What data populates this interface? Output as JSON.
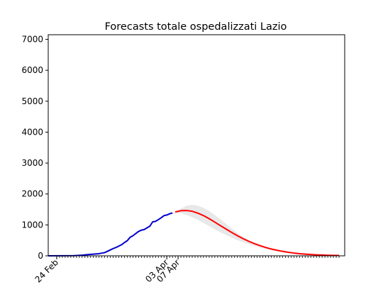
{
  "chart_data": {
    "type": "line",
    "title": "Forecasts totale ospedalizzati Lazio",
    "xlabel": "",
    "ylabel": "",
    "x_start": "2020-02-21",
    "x_end": "2020-06-05",
    "xtick_labels": [
      {
        "label": "24 Feb",
        "date": "2020-02-24"
      },
      {
        "label": "03 Apr",
        "date": "2020-04-03"
      },
      {
        "label": "07 Apr",
        "date": "2020-04-07"
      }
    ],
    "ylim": [
      0,
      7150
    ],
    "yticks": [
      0,
      1000,
      2000,
      3000,
      4000,
      5000,
      6000,
      7000
    ],
    "grid": false,
    "series": [
      {
        "role": "observed",
        "color": "#0000cc",
        "points": [
          [
            "2020-02-21",
            0
          ],
          [
            "2020-02-26",
            2
          ],
          [
            "2020-03-01",
            5
          ],
          [
            "2020-03-04",
            20
          ],
          [
            "2020-03-06",
            40
          ],
          [
            "2020-03-08",
            55
          ],
          [
            "2020-03-10",
            70
          ],
          [
            "2020-03-12",
            105
          ],
          [
            "2020-03-14",
            190
          ],
          [
            "2020-03-15",
            235
          ],
          [
            "2020-03-16",
            270
          ],
          [
            "2020-03-18",
            360
          ],
          [
            "2020-03-19",
            430
          ],
          [
            "2020-03-20",
            490
          ],
          [
            "2020-03-21",
            600
          ],
          [
            "2020-03-22",
            650
          ],
          [
            "2020-03-23",
            720
          ],
          [
            "2020-03-24",
            790
          ],
          [
            "2020-03-25",
            830
          ],
          [
            "2020-03-26",
            850
          ],
          [
            "2020-03-27",
            905
          ],
          [
            "2020-03-28",
            960
          ],
          [
            "2020-03-29",
            1100
          ],
          [
            "2020-03-30",
            1115
          ],
          [
            "2020-03-31",
            1170
          ],
          [
            "2020-04-01",
            1230
          ],
          [
            "2020-04-02",
            1300
          ],
          [
            "2020-04-03",
            1320
          ],
          [
            "2020-04-04",
            1360
          ],
          [
            "2020-04-05",
            1385
          ]
        ]
      },
      {
        "role": "forecast",
        "color": "#ff0000",
        "points": [
          [
            "2020-04-06",
            1420
          ],
          [
            "2020-04-08",
            1460
          ],
          [
            "2020-04-10",
            1465
          ],
          [
            "2020-04-12",
            1440
          ],
          [
            "2020-04-14",
            1380
          ],
          [
            "2020-04-16",
            1300
          ],
          [
            "2020-04-18",
            1200
          ],
          [
            "2020-04-20",
            1090
          ],
          [
            "2020-04-22",
            975
          ],
          [
            "2020-04-24",
            865
          ],
          [
            "2020-04-26",
            755
          ],
          [
            "2020-04-28",
            650
          ],
          [
            "2020-04-30",
            555
          ],
          [
            "2020-05-02",
            470
          ],
          [
            "2020-05-04",
            395
          ],
          [
            "2020-05-06",
            330
          ],
          [
            "2020-05-08",
            270
          ],
          [
            "2020-05-10",
            220
          ],
          [
            "2020-05-12",
            180
          ],
          [
            "2020-05-14",
            145
          ],
          [
            "2020-05-16",
            115
          ],
          [
            "2020-05-18",
            90
          ],
          [
            "2020-05-20",
            70
          ],
          [
            "2020-05-22",
            55
          ],
          [
            "2020-05-24",
            42
          ],
          [
            "2020-05-26",
            32
          ],
          [
            "2020-05-28",
            25
          ],
          [
            "2020-05-30",
            18
          ],
          [
            "2020-06-01",
            13
          ],
          [
            "2020-06-03",
            10
          ]
        ]
      }
    ],
    "band": {
      "role": "forecast-uncertainty",
      "color": "#e8e8e8",
      "upper": [
        [
          "2020-04-05",
          1390
        ],
        [
          "2020-04-08",
          1520
        ],
        [
          "2020-04-10",
          1620
        ],
        [
          "2020-04-12",
          1650
        ],
        [
          "2020-04-14",
          1620
        ],
        [
          "2020-04-16",
          1550
        ],
        [
          "2020-04-18",
          1450
        ],
        [
          "2020-04-20",
          1320
        ],
        [
          "2020-04-22",
          1180
        ],
        [
          "2020-04-24",
          1030
        ],
        [
          "2020-04-26",
          880
        ],
        [
          "2020-04-28",
          740
        ],
        [
          "2020-04-30",
          620
        ],
        [
          "2020-05-02",
          510
        ],
        [
          "2020-05-04",
          420
        ],
        [
          "2020-05-06",
          345
        ],
        [
          "2020-05-08",
          280
        ],
        [
          "2020-05-10",
          225
        ],
        [
          "2020-05-12",
          180
        ],
        [
          "2020-05-14",
          145
        ],
        [
          "2020-05-16",
          115
        ],
        [
          "2020-05-18",
          90
        ],
        [
          "2020-05-22",
          55
        ],
        [
          "2020-05-26",
          32
        ],
        [
          "2020-05-30",
          18
        ],
        [
          "2020-06-03",
          10
        ]
      ],
      "lower": [
        [
          "2020-04-05",
          1360
        ],
        [
          "2020-04-08",
          1380
        ],
        [
          "2020-04-10",
          1320
        ],
        [
          "2020-04-12",
          1250
        ],
        [
          "2020-04-14",
          1160
        ],
        [
          "2020-04-16",
          1060
        ],
        [
          "2020-04-18",
          960
        ],
        [
          "2020-04-20",
          860
        ],
        [
          "2020-04-22",
          760
        ],
        [
          "2020-04-24",
          670
        ],
        [
          "2020-04-26",
          590
        ],
        [
          "2020-04-28",
          510
        ],
        [
          "2020-04-30",
          440
        ],
        [
          "2020-05-02",
          375
        ],
        [
          "2020-05-04",
          315
        ],
        [
          "2020-05-06",
          265
        ],
        [
          "2020-05-08",
          220
        ],
        [
          "2020-05-10",
          180
        ],
        [
          "2020-05-12",
          150
        ],
        [
          "2020-05-14",
          120
        ],
        [
          "2020-05-16",
          95
        ],
        [
          "2020-05-18",
          75
        ],
        [
          "2020-05-22",
          48
        ],
        [
          "2020-05-26",
          28
        ],
        [
          "2020-05-30",
          16
        ],
        [
          "2020-06-03",
          9
        ]
      ]
    }
  }
}
